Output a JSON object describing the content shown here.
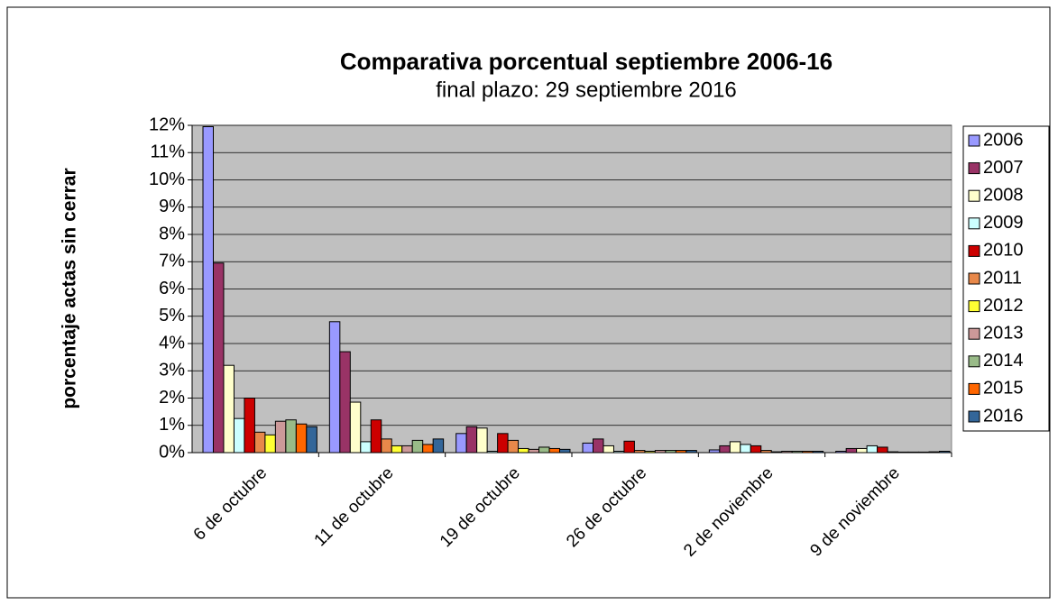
{
  "chart_data": {
    "type": "bar",
    "title": "Comparativa porcentual septiembre 2006-16",
    "subtitle": "final plazo: 29 septiembre 2016",
    "y_label": "porcentaje actas sin cerrar",
    "categories": [
      "6 de octubre",
      "11 de octubre",
      "19 de octubre",
      "26 de octubre",
      "2 de noviembre",
      "9 de noviembre"
    ],
    "series": [
      {
        "name": "2006",
        "color": "#9999ff",
        "values": [
          11.95,
          4.8,
          0.7,
          0.35,
          0.1,
          0.05
        ]
      },
      {
        "name": "2007",
        "color": "#993366",
        "values": [
          6.95,
          3.7,
          0.95,
          0.5,
          0.25,
          0.15
        ]
      },
      {
        "name": "2008",
        "color": "#ffffcc",
        "values": [
          3.2,
          1.85,
          0.9,
          0.25,
          0.4,
          0.15
        ]
      },
      {
        "name": "2009",
        "color": "#ccffff",
        "values": [
          1.25,
          0.4,
          0.05,
          0.05,
          0.3,
          0.25
        ]
      },
      {
        "name": "2010",
        "color": "#cc0000",
        "values": [
          2.0,
          1.2,
          0.7,
          0.42,
          0.25,
          0.2
        ]
      },
      {
        "name": "2011",
        "color": "#e8884a",
        "values": [
          0.75,
          0.5,
          0.45,
          0.08,
          0.08,
          0.03
        ]
      },
      {
        "name": "2012",
        "color": "#ffff33",
        "values": [
          0.65,
          0.25,
          0.15,
          0.05,
          0.03,
          0.02
        ]
      },
      {
        "name": "2013",
        "color": "#cc9999",
        "values": [
          1.15,
          0.25,
          0.12,
          0.08,
          0.05,
          0.02
        ]
      },
      {
        "name": "2014",
        "color": "#99bb88",
        "values": [
          1.2,
          0.45,
          0.2,
          0.08,
          0.05,
          0.02
        ]
      },
      {
        "name": "2015",
        "color": "#ff6600",
        "values": [
          1.05,
          0.3,
          0.15,
          0.08,
          0.05,
          0.03
        ]
      },
      {
        "name": "2016",
        "color": "#336699",
        "values": [
          0.95,
          0.5,
          0.12,
          0.08,
          0.05,
          0.05
        ]
      }
    ],
    "ylim": [
      0,
      12
    ],
    "yticks": [
      {
        "value": 0,
        "label": "0%"
      },
      {
        "value": 1,
        "label": "1%"
      },
      {
        "value": 2,
        "label": "2%"
      },
      {
        "value": 3,
        "label": "3%"
      },
      {
        "value": 4,
        "label": "4%"
      },
      {
        "value": 5,
        "label": "5%"
      },
      {
        "value": 6,
        "label": "6%"
      },
      {
        "value": 7,
        "label": "7%"
      },
      {
        "value": 8,
        "label": "8%"
      },
      {
        "value": 9,
        "label": "9%"
      },
      {
        "value": 10,
        "label": "10%"
      },
      {
        "value": 11,
        "label": "11%"
      },
      {
        "value": 12,
        "label": "12%"
      }
    ],
    "grid": true,
    "legend": "right",
    "plot_background": "#c0c0c0"
  }
}
